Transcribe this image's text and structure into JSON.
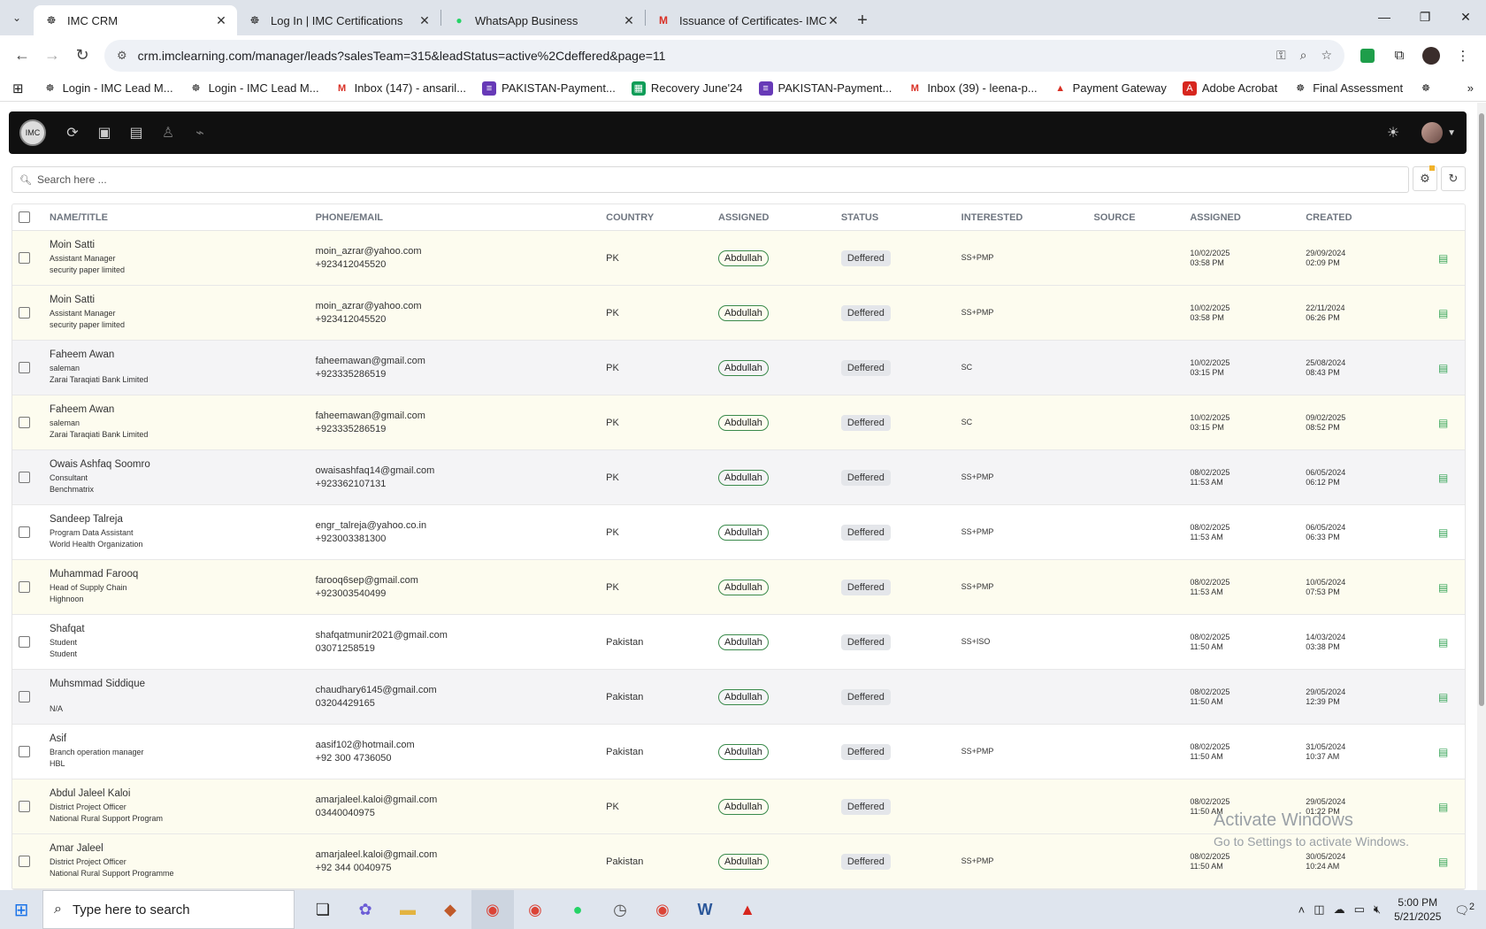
{
  "browser": {
    "tabs": [
      {
        "title": "IMC CRM",
        "active": true
      },
      {
        "title": "Log In | IMC Certifications",
        "active": false
      },
      {
        "title": "WhatsApp Business",
        "active": false
      },
      {
        "title": "Issuance of Certificates- IMC Ce",
        "active": false
      }
    ],
    "url": "crm.imclearning.com/manager/leads?salesTeam=315&leadStatus=active%2Cdeffered&page=11",
    "bookmarks": [
      "Login - IMC Lead M...",
      "Login - IMC Lead M...",
      "Inbox (147) - ansaril...",
      "PAKISTAN-Payment...",
      "Recovery June'24",
      "PAKISTAN-Payment...",
      "Inbox (39) - leena-p...",
      "Payment Gateway",
      "Adobe Acrobat",
      "Final Assessment"
    ]
  },
  "app": {
    "logo_text": "IMC",
    "search_placeholder": "Search here ...",
    "columns": [
      "NAME/TITLE",
      "PHONE/EMAIL",
      "COUNTRY",
      "ASSIGNED",
      "STATUS",
      "INTERESTED",
      "SOURCE",
      "ASSIGNED",
      "CREATED"
    ],
    "rows": [
      {
        "name": "Moin Satti",
        "title": "Assistant Manager",
        "company": "security paper limited",
        "email": "moin_azrar@yahoo.com",
        "phone": "+923412045520",
        "country": "PK",
        "assigned": "Abdullah",
        "status": "Deffered",
        "interested": "SS+PMP",
        "source": "",
        "assigned_date": "10/02/2025",
        "assigned_time": "03:58 PM",
        "created_date": "29/09/2024",
        "created_time": "02:09 PM",
        "bg": "yellow"
      },
      {
        "name": "Moin Satti",
        "title": "Assistant Manager",
        "company": "security paper limited",
        "email": "moin_azrar@yahoo.com",
        "phone": "+923412045520",
        "country": "PK",
        "assigned": "Abdullah",
        "status": "Deffered",
        "interested": "SS+PMP",
        "source": "",
        "assigned_date": "10/02/2025",
        "assigned_time": "03:58 PM",
        "created_date": "22/11/2024",
        "created_time": "06:26 PM",
        "bg": "yellow"
      },
      {
        "name": "Faheem Awan",
        "title": "saleman",
        "company": "Zarai Taraqiati Bank Limited",
        "email": "faheemawan@gmail.com",
        "phone": "+923335286519",
        "country": "PK",
        "assigned": "Abdullah",
        "status": "Deffered",
        "interested": "SC",
        "source": "",
        "assigned_date": "10/02/2025",
        "assigned_time": "03:15 PM",
        "created_date": "25/08/2024",
        "created_time": "08:43 PM",
        "bg": "grey"
      },
      {
        "name": "Faheem Awan",
        "title": "saleman",
        "company": "Zarai Taraqiati Bank Limited",
        "email": "faheemawan@gmail.com",
        "phone": "+923335286519",
        "country": "PK",
        "assigned": "Abdullah",
        "status": "Deffered",
        "interested": "SC",
        "source": "",
        "assigned_date": "10/02/2025",
        "assigned_time": "03:15 PM",
        "created_date": "09/02/2025",
        "created_time": "08:52 PM",
        "bg": "yellow"
      },
      {
        "name": "Owais Ashfaq Soomro",
        "title": "Consultant",
        "company": "Benchmatrix",
        "email": "owaisashfaq14@gmail.com",
        "phone": "+923362107131",
        "country": "PK",
        "assigned": "Abdullah",
        "status": "Deffered",
        "interested": "SS+PMP",
        "source": "",
        "assigned_date": "08/02/2025",
        "assigned_time": "11:53 AM",
        "created_date": "06/05/2024",
        "created_time": "06:12 PM",
        "bg": "grey"
      },
      {
        "name": "Sandeep Talreja",
        "title": "Program Data Assistant",
        "company": "World Health Organization",
        "email": "engr_talreja@yahoo.co.in",
        "phone": "+923003381300",
        "country": "PK",
        "assigned": "Abdullah",
        "status": "Deffered",
        "interested": "SS+PMP",
        "source": "",
        "assigned_date": "08/02/2025",
        "assigned_time": "11:53 AM",
        "created_date": "06/05/2024",
        "created_time": "06:33 PM",
        "bg": "white"
      },
      {
        "name": "Muhammad Farooq",
        "title": "Head of Supply Chain",
        "company": "Highnoon",
        "email": "farooq6sep@gmail.com",
        "phone": "+923003540499",
        "country": "PK",
        "assigned": "Abdullah",
        "status": "Deffered",
        "interested": "SS+PMP",
        "source": "",
        "assigned_date": "08/02/2025",
        "assigned_time": "11:53 AM",
        "created_date": "10/05/2024",
        "created_time": "07:53 PM",
        "bg": "yellow"
      },
      {
        "name": "Shafqat",
        "title": "Student",
        "company": "Student",
        "email": "shafqatmunir2021@gmail.com",
        "phone": "03071258519",
        "country": "Pakistan",
        "assigned": "Abdullah",
        "status": "Deffered",
        "interested": "SS+ISO",
        "source": "",
        "assigned_date": "08/02/2025",
        "assigned_time": "11:50 AM",
        "created_date": "14/03/2024",
        "created_time": "03:38 PM",
        "bg": "white"
      },
      {
        "name": "Muhsmmad Siddique",
        "title": "",
        "company": "N/A",
        "email": "chaudhary6145@gmail.com",
        "phone": "03204429165",
        "country": "Pakistan",
        "assigned": "Abdullah",
        "status": "Deffered",
        "interested": "",
        "source": "",
        "assigned_date": "08/02/2025",
        "assigned_time": "11:50 AM",
        "created_date": "29/05/2024",
        "created_time": "12:39 PM",
        "bg": "grey"
      },
      {
        "name": "Asif",
        "title": "Branch operation manager",
        "company": "HBL",
        "email": "aasif102@hotmail.com",
        "phone": "+92 300 4736050",
        "country": "Pakistan",
        "assigned": "Abdullah",
        "status": "Deffered",
        "interested": "SS+PMP",
        "source": "",
        "assigned_date": "08/02/2025",
        "assigned_time": "11:50 AM",
        "created_date": "31/05/2024",
        "created_time": "10:37 AM",
        "bg": "white"
      },
      {
        "name": "Abdul Jaleel Kaloi",
        "title": "District Project Officer",
        "company": "National Rural Support Program",
        "email": "amarjaleel.kaloi@gmail.com",
        "phone": "03440040975",
        "country": "PK",
        "assigned": "Abdullah",
        "status": "Deffered",
        "interested": "",
        "source": "",
        "assigned_date": "08/02/2025",
        "assigned_time": "11:50 AM",
        "created_date": "29/05/2024",
        "created_time": "01:22 PM",
        "bg": "yellow"
      },
      {
        "name": "Amar Jaleel",
        "title": "District Project Officer",
        "company": "National Rural Support Programme",
        "email": "amarjaleel.kaloi@gmail.com",
        "phone": "+92 344 0040975",
        "country": "Pakistan",
        "assigned": "Abdullah",
        "status": "Deffered",
        "interested": "SS+PMP",
        "source": "",
        "assigned_date": "08/02/2025",
        "assigned_time": "11:50 AM",
        "created_date": "30/05/2024",
        "created_time": "10:24 AM",
        "bg": "yellow"
      }
    ]
  },
  "watermark": {
    "line1": "Activate Windows",
    "line2": "Go to Settings to activate Windows."
  },
  "taskbar": {
    "search_placeholder": "Type here to search",
    "time": "5:00 PM",
    "date": "5/21/2025",
    "notification_count": "2"
  }
}
